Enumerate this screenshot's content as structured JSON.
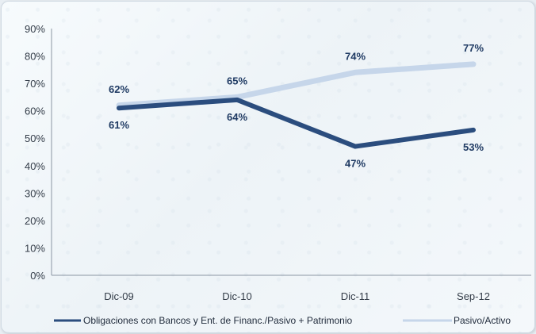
{
  "chart_data": {
    "type": "line",
    "categories": [
      "Dic-09",
      "Dic-10",
      "Dic-11",
      "Sep-12"
    ],
    "ylim": [
      0,
      90
    ],
    "yticks": [
      "0%",
      "10%",
      "20%",
      "30%",
      "40%",
      "50%",
      "60%",
      "70%",
      "80%",
      "90%"
    ],
    "series": [
      {
        "name": "Obligaciones con Bancos y Ent. de Financ./Pasivo + Patrimonio",
        "values": [
          61,
          64,
          47,
          53
        ],
        "labels": [
          "61%",
          "64%",
          "47%",
          "53%"
        ],
        "color": "#2b4d7e"
      },
      {
        "name": "Pasivo/Activo",
        "values": [
          62,
          65,
          74,
          77
        ],
        "labels": [
          "62%",
          "65%",
          "74%",
          "77%"
        ],
        "color": "#c6d6ea"
      }
    ],
    "legend": "bottom",
    "grid": false
  }
}
